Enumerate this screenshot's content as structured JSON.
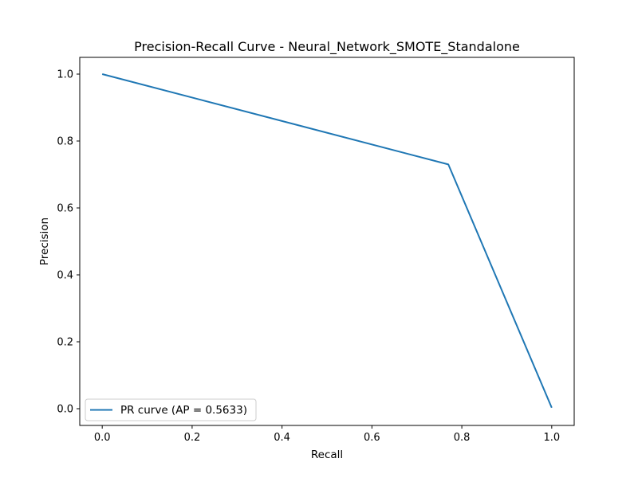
{
  "chart_data": {
    "type": "line",
    "title": "Precision-Recall Curve - Neural_Network_SMOTE_Standalone",
    "xlabel": "Recall",
    "ylabel": "Precision",
    "xlim": [
      -0.05,
      1.05
    ],
    "ylim": [
      -0.05,
      1.05
    ],
    "x_ticks": [
      0.0,
      0.2,
      0.4,
      0.6,
      0.8,
      1.0
    ],
    "y_ticks": [
      0.0,
      0.2,
      0.4,
      0.6,
      0.8,
      1.0
    ],
    "x_tick_labels": [
      "0.0",
      "0.2",
      "0.4",
      "0.6",
      "0.8",
      "1.0"
    ],
    "y_tick_labels": [
      "0.0",
      "0.2",
      "0.4",
      "0.6",
      "0.8",
      "1.0"
    ],
    "grid": false,
    "legend_position": "lower-left",
    "series": [
      {
        "name": "PR curve (AP = 0.5633)",
        "color": "#1f77b4",
        "x": [
          0.0,
          0.77,
          1.0
        ],
        "y": [
          1.0,
          0.73,
          0.003
        ]
      }
    ]
  }
}
